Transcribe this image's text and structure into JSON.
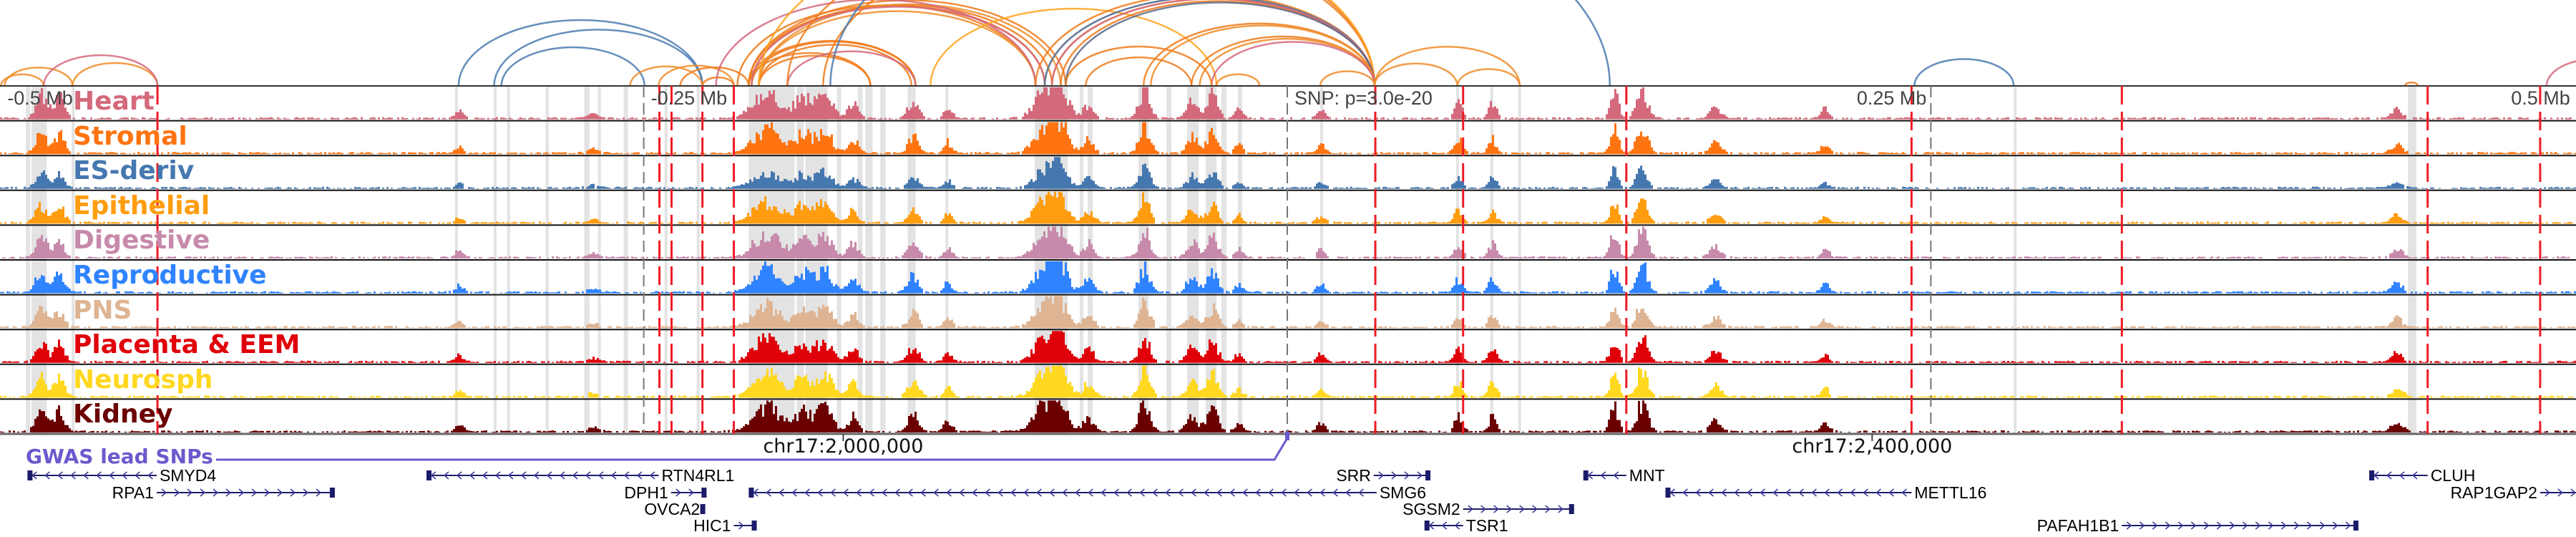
{
  "axis": {
    "top_ticks": [
      {
        "label": "-0.5 Mb",
        "kb": -500
      },
      {
        "label": "-0.25 Mb",
        "kb": -250
      },
      {
        "label": "SNP: p=3.0e-20",
        "kb": 0
      },
      {
        "label": "0.25 Mb",
        "kb": 250
      },
      {
        "label": "0.5 Mb",
        "kb": 500
      }
    ],
    "coord_ticks": [
      {
        "label": "chr17:2,000,000",
        "kb": -172.5
      },
      {
        "label": "chr17:2,400,000",
        "kb": 227.2
      }
    ]
  },
  "tracks": [
    {
      "name": "Heart",
      "color": "#d4697c"
    },
    {
      "name": "Stromal",
      "color": "#ff7410"
    },
    {
      "name": "ES-deriv",
      "color": "#4678b0"
    },
    {
      "name": "Epithelial",
      "color": "#ff9d0f"
    },
    {
      "name": "Digestive",
      "color": "#c78aab"
    },
    {
      "name": "Reproductive",
      "color": "#2f83ff"
    },
    {
      "name": "PNS",
      "color": "#deb492"
    },
    {
      "name": "Placenta & EEM",
      "color": "#e0000a"
    },
    {
      "name": "Neurosph",
      "color": "#ffd81f"
    },
    {
      "name": "Kidney",
      "color": "#6b0000"
    }
  ],
  "highlight_regions_kb": [
    [
      -490,
      -488.3
    ],
    [
      -487.8,
      -481.9
    ],
    [
      -472.2,
      -471.1
    ],
    [
      -323.3,
      -322.2
    ],
    [
      -308.3,
      -307.2
    ],
    [
      -303.1,
      -301.9
    ],
    [
      -288.1,
      -286.9
    ],
    [
      -273.1,
      -271.1
    ],
    [
      -267.8,
      -266.7
    ],
    [
      -257.8,
      -256.1
    ],
    [
      -241.9,
      -240.8
    ],
    [
      -229.4,
      -228.3
    ],
    [
      -209.2,
      -191.4
    ],
    [
      -190.6,
      -187.8
    ],
    [
      -187.2,
      -178.6
    ],
    [
      -175,
      -173.3
    ],
    [
      -166.9,
      -165
    ],
    [
      -163.9,
      -161.1
    ],
    [
      -158.1,
      -156.1
    ],
    [
      -147.5,
      -144.4
    ],
    [
      -132.8,
      -131.7
    ],
    [
      -98.1,
      -85.3
    ],
    [
      -80.6,
      -79.2
    ],
    [
      -77.5,
      -75.6
    ],
    [
      -57.8,
      -53.9
    ],
    [
      -46.9,
      -45
    ],
    [
      -38.9,
      -34.4
    ],
    [
      -31.7,
      -27.5
    ],
    [
      -25.6,
      -23.6
    ],
    [
      -19.2,
      -17.5
    ],
    [
      12.8,
      13.9
    ],
    [
      65.6,
      66.7
    ],
    [
      78.9,
      80
    ],
    [
      89.7,
      90.8
    ],
    [
      282.2,
      283.3
    ],
    [
      435.3,
      438.6
    ]
  ],
  "red_markers_kb": [
    -438.9,
    -243.9,
    -239.2,
    -227.2,
    -215,
    34.2,
    68.3,
    131.7,
    242.5,
    324.2,
    443,
    486.7
  ],
  "grey_markers_kb": [
    -250,
    0,
    250
  ],
  "gwas": {
    "label": "GWAS lead SNPs",
    "color": "#6a5acd",
    "snp_kb": 0
  },
  "genes": [
    {
      "name": "SMYD4",
      "start": -489.4,
      "end": -439.2,
      "strand": "-",
      "row": 0
    },
    {
      "name": "RTN4RL1",
      "start": -334.4,
      "end": -244.2,
      "strand": "-",
      "row": 0
    },
    {
      "name": "SRR",
      "start": 33.6,
      "end": 55.6,
      "strand": "+",
      "row": 0
    },
    {
      "name": "MNT",
      "start": 115,
      "end": 131.7,
      "strand": "-",
      "row": 0
    },
    {
      "name": "CLUH",
      "start": 420.3,
      "end": 443,
      "strand": "-",
      "row": 0
    },
    {
      "name": "RPA1",
      "start": -439.2,
      "end": -370,
      "strand": "+",
      "row": 1
    },
    {
      "name": "DPH1",
      "start": -239.4,
      "end": -225.6,
      "strand": "+",
      "row": 1
    },
    {
      "name": "SMG6",
      "start": -209.2,
      "end": 34.7,
      "strand": "-",
      "row": 1
    },
    {
      "name": "METTL16",
      "start": 146.9,
      "end": 242.5,
      "strand": "-",
      "row": 1
    },
    {
      "name": "RAP1GAP2",
      "start": 486.7,
      "end": 505,
      "strand": "+",
      "row": 1
    },
    {
      "name": "OVCA2",
      "start": -227,
      "end": -226.1,
      "strand": "+",
      "row": 2
    },
    {
      "name": "SGSM2",
      "start": 68.3,
      "end": 111.4,
      "strand": "+",
      "row": 2
    },
    {
      "name": "HIC1",
      "start": -215,
      "end": -206.1,
      "strand": "+",
      "row": 3
    },
    {
      "name": "TSR1",
      "start": 53.3,
      "end": 68.3,
      "strand": "-",
      "row": 3
    },
    {
      "name": "PAFAH1B1",
      "start": 324.2,
      "end": 416.1,
      "strand": "+",
      "row": 3
    }
  ],
  "loops": [
    [
      -499.7,
      -483.1,
      "#f08c28"
    ],
    [
      -498.3,
      -471.9,
      "#f08c28"
    ],
    [
      -471.9,
      -438.9,
      "#f08c28"
    ],
    [
      -483.1,
      -438.9,
      "#d4697c"
    ],
    [
      -321.9,
      -227.2,
      "#4a7ab0"
    ],
    [
      -308.1,
      -227.2,
      "#4a7ab0"
    ],
    [
      -305.3,
      -249.7,
      "#4a7ab0"
    ],
    [
      -255.3,
      -227.2,
      "#f08c28"
    ],
    [
      -244.2,
      -215,
      "#f08c28"
    ],
    [
      -227.2,
      -215,
      "#f07a1a"
    ],
    [
      -235.8,
      -209.2,
      "#f07a1a"
    ],
    [
      -209.2,
      -144.4,
      "#f07a1a"
    ],
    [
      -208.1,
      -144.4,
      "#f07a1a"
    ],
    [
      -205.3,
      -146,
      "#f07a1a"
    ],
    [
      -209.2,
      -161.9,
      "#f07a1a"
    ],
    [
      -205.3,
      -161.9,
      "#f07a1a"
    ],
    [
      -194.2,
      -144.4,
      "#d4697c"
    ],
    [
      -213.6,
      -97.8,
      "#f07a1a"
    ],
    [
      -209.2,
      -94.2,
      "#f07a1a"
    ],
    [
      -208.1,
      -91.4,
      "#f07a1a"
    ],
    [
      -205.3,
      -97.8,
      "#f08c28"
    ],
    [
      -209.2,
      -86.1,
      "#f07a1a"
    ],
    [
      -205.3,
      -88,
      "#f08c28"
    ],
    [
      -221.9,
      -97.8,
      "#d4697c"
    ],
    [
      -208.1,
      -94.2,
      "#d4697c"
    ],
    [
      -194.2,
      33.9,
      "#f07a1a"
    ],
    [
      -180.3,
      33.9,
      "#f07a1a"
    ],
    [
      -205.3,
      33.9,
      "#ffa520"
    ],
    [
      -177.5,
      125.3,
      "#4a7ab0"
    ],
    [
      -138.6,
      -27.5,
      "#ffa520"
    ],
    [
      -97.8,
      33.9,
      "#f07a1a"
    ],
    [
      -94.2,
      33.9,
      "#f07a1a"
    ],
    [
      -91.4,
      33.9,
      "#f08c28"
    ],
    [
      -88,
      33.9,
      "#f07a1a"
    ],
    [
      -94.2,
      33.9,
      "#4a7ab0"
    ],
    [
      -91.4,
      33.9,
      "#d4697c"
    ],
    [
      -86.1,
      33.9,
      "#5a6a8a"
    ],
    [
      -55.8,
      33.9,
      "#f07a1a"
    ],
    [
      -53,
      33.9,
      "#f08c28"
    ],
    [
      -37.2,
      33.9,
      "#f07a1a"
    ],
    [
      -34,
      33.9,
      "#f08c28"
    ],
    [
      -29.4,
      33.9,
      "#d4697c"
    ],
    [
      -86.1,
      -29.4,
      "#f07a1a"
    ],
    [
      -78.3,
      -37.2,
      "#f07a1a"
    ],
    [
      -27.5,
      -10.8,
      "#f08c28"
    ],
    [
      12.8,
      33.9,
      "#f08c28"
    ],
    [
      33.9,
      66.1,
      "#f08c28"
    ],
    [
      33.9,
      90.3,
      "#f08c28"
    ],
    [
      66.1,
      90.3,
      "#f08c28"
    ],
    [
      243.6,
      282.2,
      "#4a7ab0"
    ],
    [
      434.2,
      439.2,
      "#f07a1a"
    ],
    [
      489.2,
      528.1,
      "#d4697c"
    ]
  ],
  "signal_hotspots": [
    [
      -484.4,
      2,
      0.8
    ],
    [
      -477.5,
      2,
      0.7
    ],
    [
      -322,
      1.5,
      0.25
    ],
    [
      -270,
      2,
      0.15
    ],
    [
      -202.5,
      5,
      0.9
    ],
    [
      -188.6,
      3,
      0.7
    ],
    [
      -180.3,
      3,
      0.8
    ],
    [
      -169,
      2,
      0.5
    ],
    [
      -145.6,
      2,
      0.6
    ],
    [
      -132.2,
      1.5,
      0.4
    ],
    [
      -94.2,
      4,
      1.0
    ],
    [
      -88.6,
      3,
      0.9
    ],
    [
      -77.5,
      2,
      0.5
    ],
    [
      -55.8,
      2,
      1.0
    ],
    [
      -37.2,
      2,
      0.6
    ],
    [
      -29.4,
      2,
      0.8
    ],
    [
      -19.2,
      1.5,
      0.3
    ],
    [
      12.8,
      1.5,
      0.3
    ],
    [
      66.1,
      1.5,
      0.5
    ],
    [
      79.4,
      1.5,
      0.5
    ],
    [
      126.7,
      1.5,
      0.9
    ],
    [
      137.5,
      2,
      1.0
    ],
    [
      166,
      2,
      0.4
    ],
    [
      208.6,
      1.5,
      0.3
    ],
    [
      430.8,
      2,
      0.35
    ]
  ]
}
